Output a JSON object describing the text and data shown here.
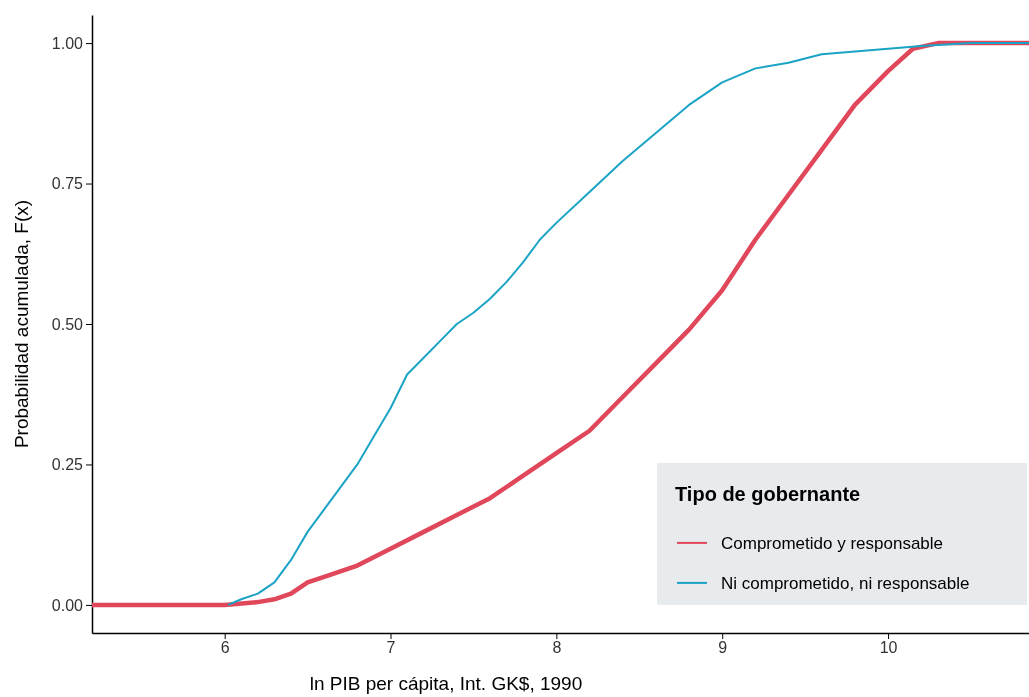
{
  "chart_data": {
    "type": "line",
    "xlabel": "ln PIB per cápita, Int. GK$, 1990",
    "ylabel": "Probabilidad acumulada, F(x)",
    "legend_title": "Tipo de gobernante",
    "legend": "bottom right",
    "grid": false,
    "xlim": [
      5.2,
      10.85
    ],
    "xticks": [
      6,
      7,
      8,
      9,
      10
    ],
    "ylim": [
      -0.05,
      1.05
    ],
    "yticks": [
      {
        "value": 0,
        "label": "0.00"
      },
      {
        "value": 0.25,
        "label": "0.25"
      },
      {
        "value": 0.5,
        "label": "0.50"
      },
      {
        "value": 0.75,
        "label": "0.75"
      },
      {
        "value": 1,
        "label": "1.00"
      }
    ],
    "series": [
      {
        "name": "Comprometido y responsable",
        "color": "#e0475b",
        "x": [
          5.2,
          6.0,
          6.2,
          6.3,
          6.4,
          6.5,
          6.6,
          6.8,
          7.0,
          7.2,
          7.4,
          7.6,
          7.8,
          8.0,
          8.2,
          8.4,
          8.6,
          8.8,
          9.0,
          9.2,
          9.4,
          9.6,
          9.8,
          10.0,
          10.15,
          10.3,
          10.85
        ],
        "values": [
          0,
          0,
          0.005,
          0.01,
          0.02,
          0.04,
          0.05,
          0.07,
          0.1,
          0.13,
          0.16,
          0.19,
          0.23,
          0.27,
          0.31,
          0.37,
          0.43,
          0.49,
          0.56,
          0.65,
          0.73,
          0.81,
          0.89,
          0.95,
          0.99,
          1,
          1
        ]
      },
      {
        "name": "Ni comprometido, ni responsable",
        "color": "#1ba3c6",
        "x": [
          6.02,
          6.1,
          6.2,
          6.3,
          6.4,
          6.5,
          6.6,
          6.7,
          6.8,
          6.9,
          7.0,
          7.1,
          7.2,
          7.3,
          7.4,
          7.5,
          7.6,
          7.7,
          7.8,
          7.9,
          8.0,
          8.2,
          8.4,
          8.6,
          8.8,
          9.0,
          9.2,
          9.4,
          9.6,
          9.8,
          10.0,
          10.2,
          10.5,
          10.85
        ],
        "values": [
          0,
          0.01,
          0.02,
          0.04,
          0.08,
          0.13,
          0.17,
          0.21,
          0.25,
          0.3,
          0.35,
          0.41,
          0.44,
          0.47,
          0.5,
          0.52,
          0.545,
          0.575,
          0.61,
          0.65,
          0.68,
          0.735,
          0.79,
          0.84,
          0.89,
          0.93,
          0.955,
          0.965,
          0.98,
          0.985,
          0.99,
          0.995,
          1,
          1
        ]
      }
    ]
  }
}
